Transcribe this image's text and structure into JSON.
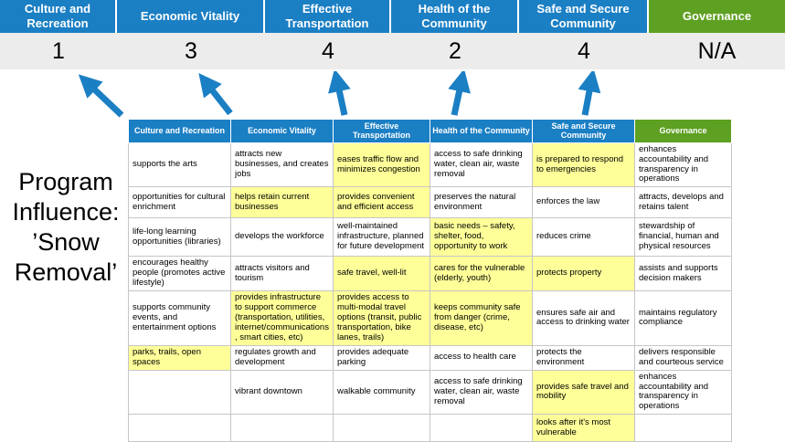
{
  "title_text": "Program Influence: ’Snow Removal’",
  "summary": {
    "columns": [
      {
        "label": "Culture and Recreation",
        "score": "1",
        "theme": "blue"
      },
      {
        "label": "Economic Vitality",
        "score": "3",
        "theme": "blue"
      },
      {
        "label": "Effective Transportation",
        "score": "4",
        "theme": "blue"
      },
      {
        "label": "Health of the Community",
        "score": "2",
        "theme": "blue"
      },
      {
        "label": "Safe and Secure Community",
        "score": "4",
        "theme": "blue"
      },
      {
        "label": "Governance",
        "score": "N/A",
        "theme": "green"
      }
    ]
  },
  "table": {
    "headers": [
      {
        "label": "Culture and Recreation",
        "theme": "blue"
      },
      {
        "label": "Economic Vitality",
        "theme": "blue"
      },
      {
        "label": "Effective Transportation",
        "theme": "blue"
      },
      {
        "label": "Health of the Community",
        "theme": "blue"
      },
      {
        "label": "Safe and Secure Community",
        "theme": "blue"
      },
      {
        "label": "Governance",
        "theme": "green"
      }
    ],
    "rows": [
      [
        {
          "text": "supports the arts",
          "highlight": false
        },
        {
          "text": "attracts new businesses, and creates jobs",
          "highlight": false
        },
        {
          "text": "eases traffic flow and minimizes congestion",
          "highlight": true
        },
        {
          "text": "access to safe drinking water, clean air, waste removal",
          "highlight": false
        },
        {
          "text": "is prepared to respond to emergencies",
          "highlight": true
        },
        {
          "text": "enhances accountability and transparency in operations",
          "highlight": false
        }
      ],
      [
        {
          "text": "opportunities for cultural enrichment",
          "highlight": false
        },
        {
          "text": "helps retain current businesses",
          "highlight": true
        },
        {
          "text": "provides convenient and efficient access",
          "highlight": true
        },
        {
          "text": "preserves the natural environment",
          "highlight": false
        },
        {
          "text": "enforces the law",
          "highlight": false
        },
        {
          "text": "attracts, develops and retains talent",
          "highlight": false
        }
      ],
      [
        {
          "text": "life-long learning opportunities (libraries)",
          "highlight": false
        },
        {
          "text": "develops the workforce",
          "highlight": false
        },
        {
          "text": "well-maintained infrastructure, planned for future development",
          "highlight": false
        },
        {
          "text": "basic needs – safety, shelter, food, opportunity to work",
          "highlight": true
        },
        {
          "text": "reduces crime",
          "highlight": false
        },
        {
          "text": "stewardship of financial, human and physical resources",
          "highlight": false
        }
      ],
      [
        {
          "text": "encourages healthy people (promotes active lifestyle)",
          "highlight": false
        },
        {
          "text": "attracts visitors and tourism",
          "highlight": false
        },
        {
          "text": "safe travel, well-lit",
          "highlight": true
        },
        {
          "text": "cares for the vulnerable (elderly, youth)",
          "highlight": true
        },
        {
          "text": "protects property",
          "highlight": true
        },
        {
          "text": "assists and supports decision makers",
          "highlight": false
        }
      ],
      [
        {
          "text": "supports community events, and entertainment options",
          "highlight": false
        },
        {
          "text": "provides infrastructure to support commerce (transportation, utilities, internet/communications, smart cities, etc)",
          "highlight": true
        },
        {
          "text": "provides access to multi-modal travel options (transit, public transportation, bike lanes, trails)",
          "highlight": true
        },
        {
          "text": "keeps community safe from danger (crime, disease, etc)",
          "highlight": true
        },
        {
          "text": "ensures safe air and access to drinking water",
          "highlight": false
        },
        {
          "text": "maintains regulatory compliance",
          "highlight": false
        }
      ],
      [
        {
          "text": "parks, trails, open spaces",
          "highlight": true
        },
        {
          "text": "regulates growth and development",
          "highlight": false
        },
        {
          "text": "provides adequate parking",
          "highlight": false
        },
        {
          "text": "access to health care",
          "highlight": false
        },
        {
          "text": "protects the environment",
          "highlight": false
        },
        {
          "text": "delivers responsible and courteous service",
          "highlight": false
        }
      ],
      [
        {
          "text": "",
          "highlight": false
        },
        {
          "text": "vibrant downtown",
          "highlight": false
        },
        {
          "text": "walkable community",
          "highlight": false
        },
        {
          "text": "access to safe drinking water, clean air, waste removal",
          "highlight": false
        },
        {
          "text": "provides safe travel and mobility",
          "highlight": true
        },
        {
          "text": "enhances accountability and transparency in operations",
          "highlight": false
        }
      ],
      [
        {
          "text": "",
          "highlight": false
        },
        {
          "text": "",
          "highlight": false
        },
        {
          "text": "",
          "highlight": false
        },
        {
          "text": "",
          "highlight": false
        },
        {
          "text": "looks after it's most vulnerable",
          "highlight": true
        },
        {
          "text": "",
          "highlight": false
        }
      ]
    ]
  },
  "colors": {
    "header_blue": "#1b7fc4",
    "header_green": "#5ea021",
    "highlight_yellow": "#ffff99",
    "score_band_bg": "#ececec",
    "table_border": "#c6c6c6",
    "arrow_blue": "#1b7fc4"
  }
}
